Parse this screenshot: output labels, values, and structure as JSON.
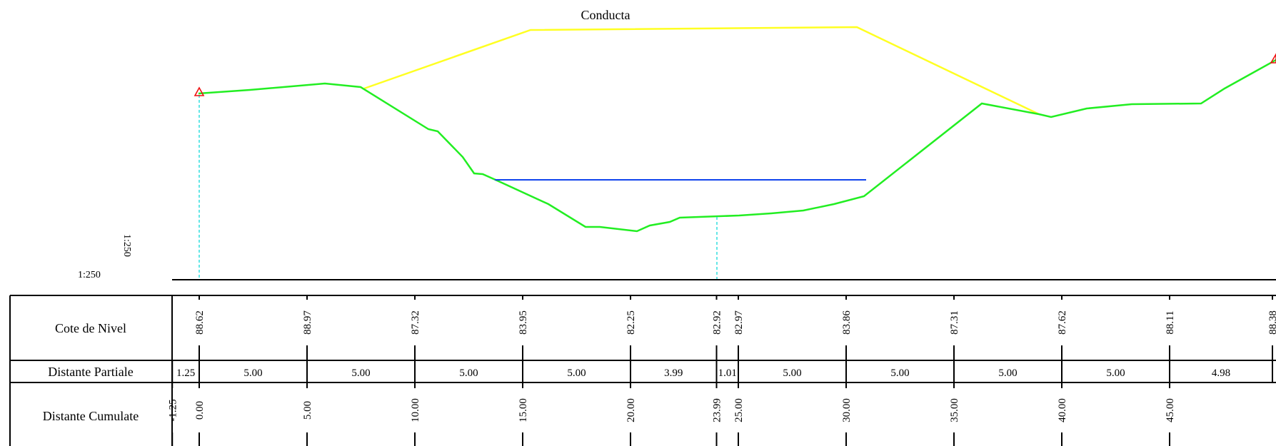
{
  "title": "Conducta",
  "scale": {
    "horizontal": "1:250",
    "vertical": "1:250"
  },
  "table": {
    "rows": [
      {
        "id": "cote",
        "label": "Cote de Nivel"
      },
      {
        "id": "partiale",
        "label": "Distante Partiale"
      },
      {
        "id": "cumulate",
        "label": "Distante Cumulate"
      }
    ]
  },
  "stations": [
    {
      "cumulative": "-1.25",
      "elevation": ""
    },
    {
      "cumulative": "0.00",
      "elevation": "88.62"
    },
    {
      "cumulative": "5.00",
      "elevation": "88.97"
    },
    {
      "cumulative": "10.00",
      "elevation": "87.32"
    },
    {
      "cumulative": "15.00",
      "elevation": "83.95"
    },
    {
      "cumulative": "20.00",
      "elevation": "82.25"
    },
    {
      "cumulative": "23.99",
      "elevation": "82.92"
    },
    {
      "cumulative": "25.00",
      "elevation": "82.97"
    },
    {
      "cumulative": "30.00",
      "elevation": "83.86"
    },
    {
      "cumulative": "35.00",
      "elevation": "87.31"
    },
    {
      "cumulative": "40.00",
      "elevation": "87.62"
    },
    {
      "cumulative": "45.00",
      "elevation": "88.11"
    },
    {
      "cumulative": "",
      "elevation": "88.38"
    }
  ],
  "partial_distances": [
    "1.25",
    "5.00",
    "5.00",
    "5.00",
    "5.00",
    "3.99",
    "1.01",
    "5.00",
    "5.00",
    "5.00",
    "5.00",
    "4.98"
  ],
  "colors": {
    "terrain": "#22ee22",
    "pipe": "#ffff22",
    "water": "#1144ee",
    "marker_line": "#22dddd",
    "marker_triangle": "#ee1111"
  }
}
